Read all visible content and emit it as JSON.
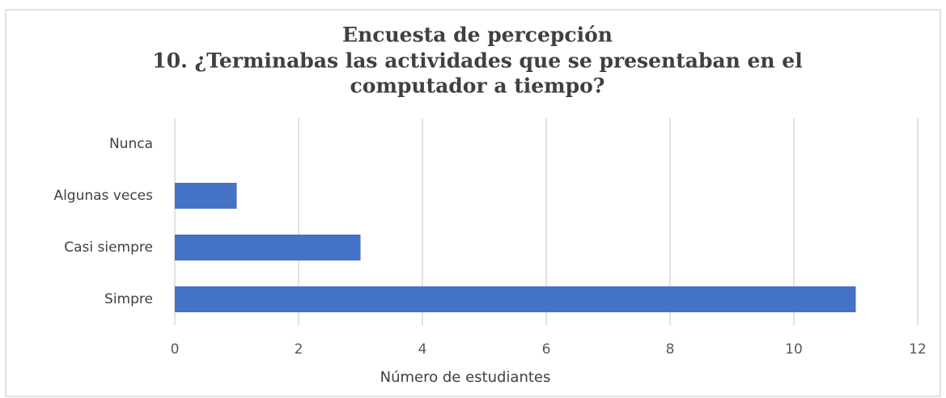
{
  "chart_data": {
    "type": "hbar",
    "title": [
      "Encuesta de percepción",
      "10. ¿Terminabas las actividades que se presentaban en el",
      "computador a tiempo?"
    ],
    "categories": [
      "Nunca",
      "Algunas veces",
      "Casi siempre",
      "Simpre"
    ],
    "values": [
      0,
      1,
      3,
      11
    ],
    "color": "#4472c4",
    "xlabel": "Número de estudiantes",
    "xlim": [
      0,
      12
    ],
    "xticks": [
      0,
      2,
      4,
      6,
      8,
      10,
      12
    ],
    "grid": true
  }
}
